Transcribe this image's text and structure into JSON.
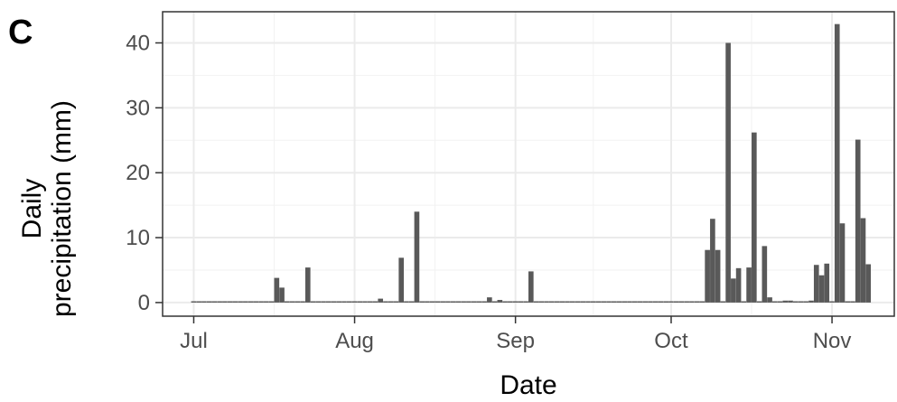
{
  "chart_data": {
    "type": "bar",
    "panel_label": "C",
    "xlabel": "Date",
    "ylabel_lines": [
      "Daily",
      "precipitation (mm)"
    ],
    "ylabel": "Daily precipitation (mm)",
    "x_ticks": [
      {
        "label": "Jul",
        "date": "2019-07-01"
      },
      {
        "label": "Aug",
        "date": "2019-08-01"
      },
      {
        "label": "Sep",
        "date": "2019-09-01"
      },
      {
        "label": "Oct",
        "date": "2019-10-01"
      },
      {
        "label": "Nov",
        "date": "2019-11-01"
      }
    ],
    "y_ticks": [
      0,
      10,
      20,
      30,
      40
    ],
    "xlim": [
      "2019-06-25",
      "2019-11-13"
    ],
    "ylim": [
      -2.1,
      44.8
    ],
    "grid": true,
    "bar_color": "#595959",
    "start_date": "2019-07-01",
    "values": [
      0.2,
      0.2,
      0.2,
      0.2,
      0.2,
      0.2,
      0.2,
      0.2,
      0.2,
      0.2,
      0.2,
      0.2,
      0.2,
      0.2,
      0.2,
      0.2,
      3.8,
      2.3,
      0.2,
      0.2,
      0.2,
      0.2,
      5.4,
      0.2,
      0.2,
      0.2,
      0.2,
      0.2,
      0.2,
      0.2,
      0.2,
      0.2,
      0.2,
      0.2,
      0.2,
      0.2,
      0.6,
      0.2,
      0.2,
      0.2,
      6.9,
      0.2,
      0.2,
      14.0,
      0.2,
      0.2,
      0.2,
      0.2,
      0.2,
      0.2,
      0.2,
      0.2,
      0.2,
      0.2,
      0.2,
      0.2,
      0.2,
      0.8,
      0.2,
      0.4,
      0.2,
      0.2,
      0.2,
      0.2,
      0.2,
      4.8,
      0.2,
      0.2,
      0.2,
      0.2,
      0.2,
      0.2,
      0.2,
      0.2,
      0.2,
      0.2,
      0.2,
      0.2,
      0.2,
      0.2,
      0.2,
      0.2,
      0.2,
      0.2,
      0.2,
      0.2,
      0.2,
      0.2,
      0.2,
      0.2,
      0.2,
      0.2,
      0.2,
      0.2,
      0.2,
      0.2,
      0.2,
      0.2,
      0.2,
      8.1,
      12.9,
      8.1,
      0.2,
      40.0,
      3.7,
      5.3,
      0.2,
      5.4,
      26.2,
      0.2,
      8.7,
      0.8,
      0.2,
      0.2,
      0.3,
      0.3,
      0.2,
      0.2,
      0.2,
      0.3,
      5.8,
      4.2,
      6.0,
      0.2,
      42.9,
      12.2,
      0.2,
      0.2,
      25.1,
      13.0,
      5.9
    ]
  }
}
